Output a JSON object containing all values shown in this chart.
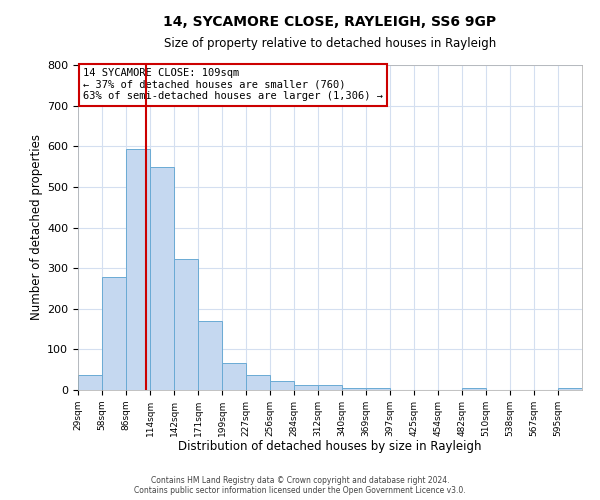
{
  "title": "14, SYCAMORE CLOSE, RAYLEIGH, SS6 9GP",
  "subtitle": "Size of property relative to detached houses in Rayleigh",
  "xlabel": "Distribution of detached houses by size in Rayleigh",
  "ylabel": "Number of detached properties",
  "bin_labels": [
    "29sqm",
    "58sqm",
    "86sqm",
    "114sqm",
    "142sqm",
    "171sqm",
    "199sqm",
    "227sqm",
    "256sqm",
    "284sqm",
    "312sqm",
    "340sqm",
    "369sqm",
    "397sqm",
    "425sqm",
    "454sqm",
    "482sqm",
    "510sqm",
    "538sqm",
    "567sqm",
    "595sqm"
  ],
  "bar_values": [
    38,
    278,
    593,
    550,
    322,
    170,
    67,
    38,
    22,
    13,
    13,
    5,
    5,
    0,
    0,
    0,
    5,
    0,
    0,
    0,
    5
  ],
  "bar_color": "#c5d8f0",
  "bar_edge_color": "#6aaad4",
  "vline_x_index": 3,
  "vline_color": "#cc0000",
  "ylim": [
    0,
    800
  ],
  "yticks": [
    0,
    100,
    200,
    300,
    400,
    500,
    600,
    700,
    800
  ],
  "annotation_line1": "14 SYCAMORE CLOSE: 109sqm",
  "annotation_line2": "← 37% of detached houses are smaller (760)",
  "annotation_line3": "63% of semi-detached houses are larger (1,306) →",
  "annotation_box_color": "#ffffff",
  "annotation_box_edge": "#cc0000",
  "footer_text": "Contains HM Land Registry data © Crown copyright and database right 2024.\nContains public sector information licensed under the Open Government Licence v3.0.",
  "background_color": "#ffffff",
  "grid_color": "#d4dff0"
}
